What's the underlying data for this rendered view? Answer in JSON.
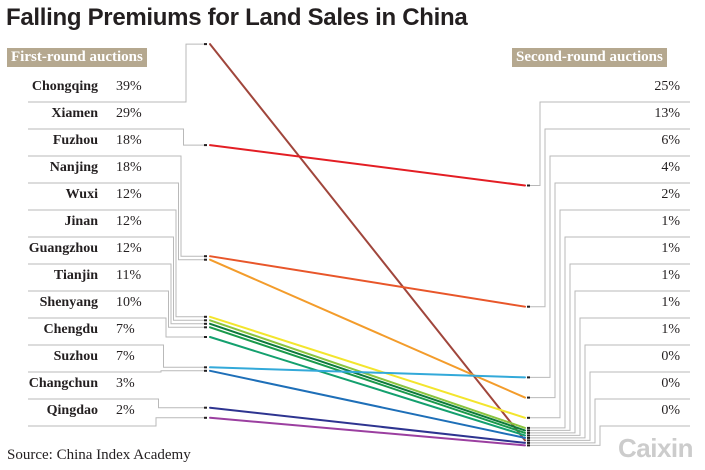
{
  "title": "Falling Premiums for Land Sales in China",
  "left_header": "First-round auctions",
  "right_header": "Second-round auctions",
  "source": "Source: China Index Academy",
  "logo": "Caixin",
  "left_rows": [
    {
      "city": "Chongqing",
      "value": "39%"
    },
    {
      "city": "Xiamen",
      "value": "29%"
    },
    {
      "city": "Fuzhou",
      "value": "18%"
    },
    {
      "city": "Nanjing",
      "value": "18%"
    },
    {
      "city": "Wuxi",
      "value": "12%"
    },
    {
      "city": "Jinan",
      "value": "12%"
    },
    {
      "city": "Guangzhou",
      "value": "12%"
    },
    {
      "city": "Tianjin",
      "value": "11%"
    },
    {
      "city": "Shenyang",
      "value": "10%"
    },
    {
      "city": "Chengdu",
      "value": "7%"
    },
    {
      "city": "Suzhou",
      "value": "7%"
    },
    {
      "city": "Changchun",
      "value": "3%"
    },
    {
      "city": "Qingdao",
      "value": "2%"
    }
  ],
  "right_values": [
    "25%",
    "13%",
    "6%",
    "4%",
    "2%",
    "1%",
    "1%",
    "1%",
    "1%",
    "1%",
    "0%",
    "0%",
    "0%"
  ],
  "chart_data": {
    "type": "line",
    "title": "Falling Premiums for Land Sales in China",
    "categories": [
      "First-round auctions",
      "Second-round auctions"
    ],
    "ylim": [
      0,
      40
    ],
    "series": [
      {
        "name": "Chongqing",
        "values": [
          39,
          0
        ],
        "color": "#a0463c"
      },
      {
        "name": "Xiamen",
        "values": [
          29,
          25
        ],
        "color": "#e31e24"
      },
      {
        "name": "Fuzhou",
        "values": [
          18,
          13
        ],
        "color": "#e8562a"
      },
      {
        "name": "Nanjing",
        "values": [
          18,
          4
        ],
        "color": "#f39c2b"
      },
      {
        "name": "Wuxi",
        "values": [
          12,
          2
        ],
        "color": "#f3e52d"
      },
      {
        "name": "Jinan",
        "values": [
          12,
          1
        ],
        "color": "#8bc43f"
      },
      {
        "name": "Guangzhou",
        "values": [
          12,
          1
        ],
        "color": "#0d7a3b"
      },
      {
        "name": "Tianjin",
        "values": [
          11,
          1
        ],
        "color": "#1a9a4b"
      },
      {
        "name": "Shenyang",
        "values": [
          10,
          1
        ],
        "color": "#14a06e"
      },
      {
        "name": "Chengdu",
        "values": [
          7,
          6
        ],
        "color": "#33a9d9"
      },
      {
        "name": "Suzhou",
        "values": [
          7,
          1
        ],
        "color": "#1e6fb8"
      },
      {
        "name": "Changchun",
        "values": [
          3,
          0
        ],
        "color": "#2e3490"
      },
      {
        "name": "Qingdao",
        "values": [
          2,
          0
        ],
        "color": "#9b3fa0"
      }
    ]
  }
}
